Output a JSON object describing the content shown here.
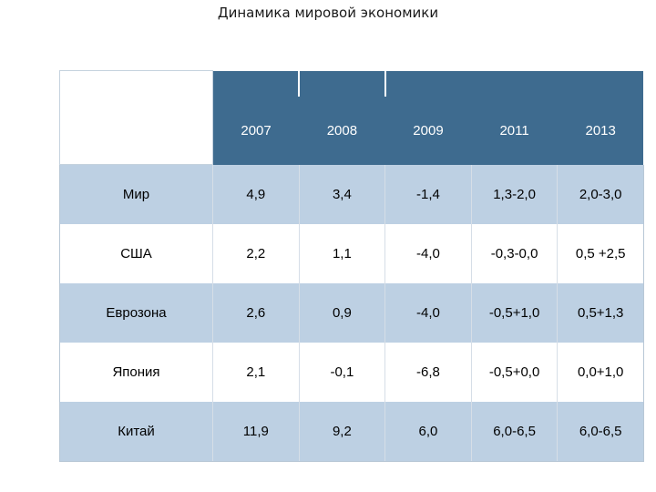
{
  "title": "Динамика мировой экономики",
  "table": {
    "years": [
      "2007",
      "2008",
      "2009",
      "2011",
      "2013"
    ],
    "rows": [
      {
        "label": "Мир",
        "values": [
          "4,9",
          "3,4",
          "-1,4",
          "1,3-2,0",
          "2,0-3,0"
        ]
      },
      {
        "label": "США",
        "values": [
          "2,2",
          "1,1",
          "-4,0",
          "-0,3-0,0",
          "0,5 +2,5"
        ]
      },
      {
        "label": "Еврозона",
        "values": [
          "2,6",
          "0,9",
          "-4,0",
          "-0,5+1,0",
          "0,5+1,3"
        ]
      },
      {
        "label": "Япония",
        "values": [
          "2,1",
          "-0,1",
          "-6,8",
          "-0,5+0,0",
          "0,0+1,0"
        ]
      },
      {
        "label": "Китай",
        "values": [
          "11,9",
          "9,2",
          "6,0",
          "6,0-6,5",
          "6,0-6,5"
        ]
      }
    ]
  },
  "colors": {
    "header_bg": "#3e6b8f",
    "shaded_row_bg": "#bdd0e3",
    "plain_row_bg": "#ffffff"
  }
}
